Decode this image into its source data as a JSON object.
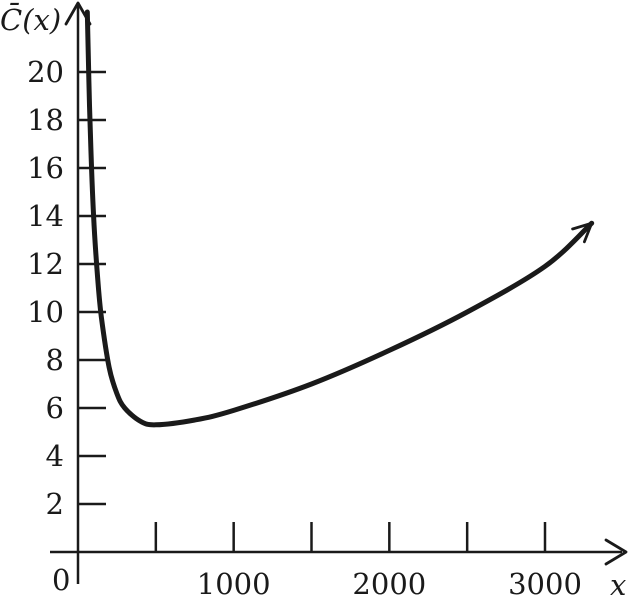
{
  "chart_data": {
    "type": "line",
    "title": "",
    "xlabel": "x",
    "ylabel": "C̄(x)",
    "xlim": [
      0,
      3300
    ],
    "ylim": [
      0,
      22
    ],
    "origin_label": "0",
    "x_ticks": [
      500,
      1000,
      1500,
      2000,
      2500,
      3000
    ],
    "x_tick_labels": [
      {
        "value": 1000,
        "label": "1000"
      },
      {
        "value": 2000,
        "label": "2000"
      },
      {
        "value": 3000,
        "label": "3000"
      }
    ],
    "y_ticks": [
      2,
      4,
      6,
      8,
      10,
      12,
      14,
      16,
      18,
      20
    ],
    "y_tick_labels": [
      {
        "value": 2,
        "label": "2"
      },
      {
        "value": 4,
        "label": "4"
      },
      {
        "value": 6,
        "label": "6"
      },
      {
        "value": 8,
        "label": "8"
      },
      {
        "value": 10,
        "label": "10"
      },
      {
        "value": 12,
        "label": "12"
      },
      {
        "value": 14,
        "label": "14"
      },
      {
        "value": 16,
        "label": "16"
      },
      {
        "value": 18,
        "label": "18"
      },
      {
        "value": 20,
        "label": "20"
      }
    ],
    "grid": false,
    "series": [
      {
        "x": [
          60,
          70,
          80,
          100,
          125,
          150,
          200,
          250,
          300,
          400,
          500,
          750,
          1000,
          1500,
          2000,
          2500,
          3000,
          3300
        ],
        "y": [
          22.5,
          19.6,
          17.3,
          14.0,
          11.5,
          9.8,
          7.7,
          6.6,
          6.0,
          5.45,
          5.3,
          5.5,
          5.9,
          7.0,
          8.4,
          10.0,
          11.9,
          13.7
        ]
      }
    ]
  }
}
